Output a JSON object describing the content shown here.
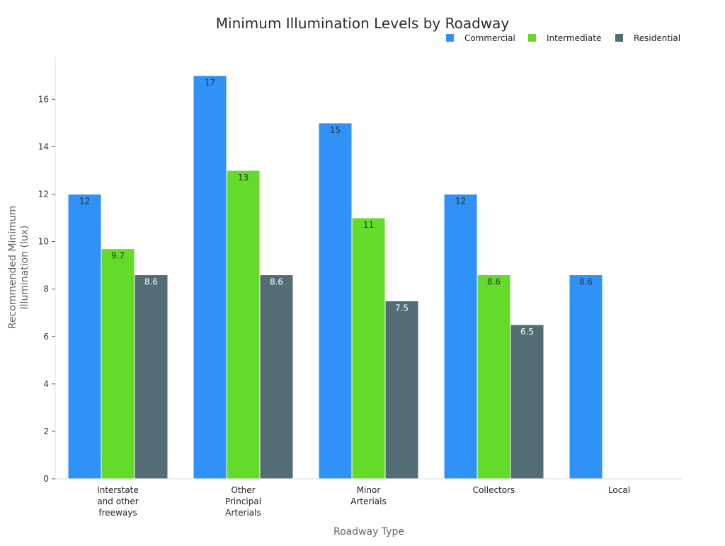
{
  "chart_data": {
    "type": "bar",
    "title": "Minimum Illumination Levels by Roadway",
    "xlabel": "Roadway Type",
    "ylabel": "Recommended Minimum\nIllumination (lux)",
    "categories": [
      "Interstate\nand other\nfreeways",
      "Other\nPrincipal\nArterials",
      "Minor\nArterials",
      "Collectors",
      "Local"
    ],
    "series": [
      {
        "name": "Commercial",
        "color": "#3092f7",
        "label_color": "#333333",
        "values": [
          12,
          17,
          15,
          12,
          8.6
        ],
        "labels": [
          "12",
          "17",
          "15",
          "12",
          "8.6"
        ]
      },
      {
        "name": "Intermediate",
        "color": "#64da2a",
        "label_color": "#333333",
        "values": [
          9.7,
          13,
          11,
          8.6,
          null
        ],
        "labels": [
          "9.7",
          "13",
          "11",
          "8.6",
          ""
        ]
      },
      {
        "name": "Residential",
        "color": "#546c75",
        "label_color": "#ffffff",
        "values": [
          8.6,
          8.6,
          7.5,
          6.5,
          null
        ],
        "labels": [
          "8.6",
          "8.6",
          "7.5",
          "6.5",
          ""
        ]
      }
    ],
    "ylim": [
      0,
      17.8
    ],
    "yticks": [
      0,
      2,
      4,
      6,
      8,
      10,
      12,
      14,
      16
    ],
    "grid": false,
    "legend": "top-right"
  }
}
